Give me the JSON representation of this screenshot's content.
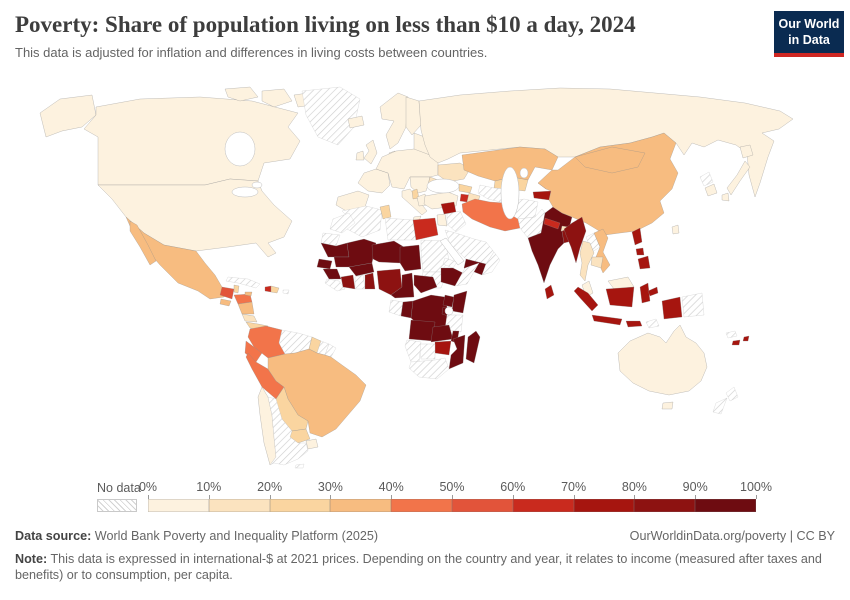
{
  "header": {
    "title": "Poverty: Share of population living on less than $10 a day, 2024",
    "subtitle": "This data is adjusted for inflation and differences in living costs between countries.",
    "logo": {
      "line1": "Our World",
      "line2": "in Data",
      "bg": "#0a2b51",
      "accent": "#cf2722"
    }
  },
  "legend": {
    "no_data_label": "No data",
    "tick_labels": [
      "0%",
      "10%",
      "20%",
      "30%",
      "40%",
      "50%",
      "60%",
      "70%",
      "80%",
      "90%",
      "100%"
    ],
    "band_colors": [
      "#FDF2DF",
      "#FBE3BF",
      "#FAD5A0",
      "#F7BC80",
      "#F2744A",
      "#E2543A",
      "#C92A1E",
      "#A6150F",
      "#8D1211",
      "#6E0C11"
    ]
  },
  "map": {
    "ocean_color": "#ffffff",
    "hatch_line_color": "#cfcfcf",
    "country_border_color": "#8a8a8a",
    "no_data_border_color": "#c2c2c2"
  },
  "footer": {
    "data_source_label": "Data source:",
    "data_source_value": "World Bank Poverty and Inequality Platform (2025)",
    "link_text": "OurWorldinData.org/poverty",
    "separator": "|",
    "license_text": "CC BY",
    "note_label": "Note:",
    "note_text": "This data is expressed in international-$ at 2021 prices. Depending on the country and year, it relates to income (measured after taxes and benefits) or to consumption, per capita."
  },
  "chart_data": {
    "type": "choropleth",
    "title": "Poverty: Share of population living on less than $10 a day, 2024",
    "unit": "% of population living on less than $10 a day",
    "year": 2024,
    "legend_position": "bottom",
    "band_ranges": [
      "0-10%",
      "10-20%",
      "20-30%",
      "30-40%",
      "40-50%",
      "50-60%",
      "60-70%",
      "70-80%",
      "80-90%",
      "90-100%"
    ],
    "values": {
      "canada": "0-10%",
      "usa": "0-10%",
      "greenland": "No data",
      "mexico": "30-40%",
      "guatemala": "50-60%",
      "belize": "20-30%",
      "honduras": "40-50%",
      "el_salvador": "30-40%",
      "nicaragua": "30-40%",
      "costa_rica": "10-20%",
      "panama": "20-30%",
      "cuba": "No data",
      "jamaica": "30-40%",
      "haiti": "60-70%",
      "dominican_republic": "20-30%",
      "puerto_rico": "No data",
      "colombia": "40-50%",
      "venezuela": "No data",
      "guyana": "20-30%",
      "suriname": "No data",
      "french_guiana": "No data",
      "ecuador": "40-50%",
      "peru": "40-50%",
      "brazil": "30-40%",
      "bolivia": "20-30%",
      "paraguay": "20-30%",
      "uruguay": "0-10%",
      "chile": "0-10%",
      "argentina": "No data",
      "falkland_islands": "No data",
      "iceland": "0-10%",
      "united_kingdom": "0-10%",
      "ireland": "0-10%",
      "scandinavia": "0-10%",
      "finland": "0-10%",
      "denmark": "0-10%",
      "baltics": "0-10%",
      "iberia": "0-10%",
      "france": "0-10%",
      "central_europe": "0-10%",
      "italy": "0-10%",
      "balkans": "0-10%",
      "albania": "20-30%",
      "greece": "0-10%",
      "ukraine": "10-20%",
      "romania": "10-20%",
      "russia": "0-10%",
      "turkey": "0-10%",
      "georgia": "20-30%",
      "armenia": "60-70%",
      "azerbaijan": "10-20%",
      "syria": "70-80%",
      "jordan_israel": "0-10%",
      "iraq": "No data",
      "saudi_arabia": "No data",
      "yemen": "90-100%",
      "oman": "No data",
      "iran": "40-50%",
      "kazakhstan": "30-40%",
      "uzbekistan": "20-30%",
      "turkmenistan": "No data",
      "kyrgyzstan": "70-80%",
      "tajikistan": "70-80%",
      "afghanistan": "No data",
      "pakistan": "No data",
      "india": "90-100%",
      "nepal": "60-70%",
      "bhutan": "10-20%",
      "bangladesh": "80-90%",
      "sri_lanka": "70-80%",
      "myanmar": "80-90%",
      "laos": "No data",
      "thailand": "10-20%",
      "cambodia": "10-20%",
      "vietnam": "30-40%",
      "china": "30-40%",
      "mongolia": "30-40%",
      "north_korea": "No data",
      "south_korea": "0-10%",
      "japan": "0-10%",
      "taiwan": "0-10%",
      "malaysia": "0-10%",
      "indonesia": "70-80%",
      "timor_leste": "No data",
      "papua_new_guinea": "No data",
      "philippines": "70-80%",
      "fiji": "70-80%",
      "new_caledonia": "No data",
      "australia": "0-10%",
      "new_zealand": "No data",
      "morocco": "No data",
      "western_sahara": "No data",
      "algeria": "No data",
      "tunisia": "20-30%",
      "libya": "No data",
      "egypt": "60-70%",
      "mauritania": "90-100%",
      "mali": "90-100%",
      "burkina_faso": "90-100%",
      "niger": "90-100%",
      "chad": "90-100%",
      "sudan": "No data",
      "south_sudan": "No data",
      "eritrea": "No data",
      "ethiopia": "90-100%",
      "somalia": "No data",
      "senegal": "90-100%",
      "guinea": "90-100%",
      "sierra_leone_liberia": "No data",
      "ivory_coast": "80-90%",
      "ghana": "No data",
      "togo_benin": "80-90%",
      "nigeria": "80-90%",
      "cameroon": "90-100%",
      "central_african_republic": "90-100%",
      "gabon": "No data",
      "congo": "90-100%",
      "drc": "90-100%",
      "uganda": "90-100%",
      "kenya": "90-100%",
      "rwanda_burundi": "90-100%",
      "tanzania": "No data",
      "angola": "90-100%",
      "zambia": "90-100%",
      "malawi": "90-100%",
      "mozambique": "90-100%",
      "zimbabwe": "70-80%",
      "botswana": "No data",
      "namibia": "No data",
      "south_africa": "No data",
      "madagascar": "90-100%"
    }
  }
}
